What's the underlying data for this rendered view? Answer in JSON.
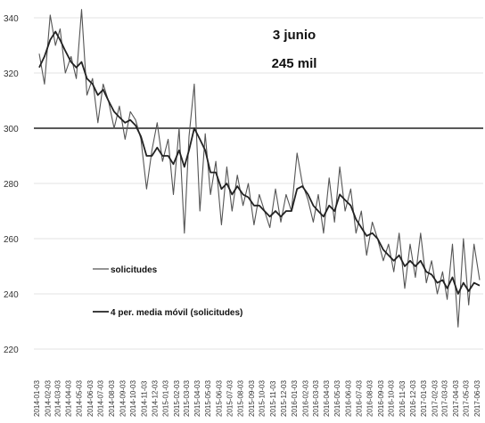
{
  "chart_data": {
    "type": "line",
    "title": "",
    "xlabel": "",
    "ylabel": "",
    "ylim": [
      220,
      345
    ],
    "y_ticks": [
      220,
      240,
      260,
      280,
      300,
      320,
      340
    ],
    "grid": "horizontal",
    "legend_placement": "left-lower inside plot",
    "annotation": {
      "line1": "3 junio",
      "line2": "245 mil"
    },
    "reference_line": {
      "y": 300,
      "color": "#222222"
    },
    "x_labels": [
      "2014-01-03",
      "2014-02-03",
      "2014-03-03",
      "2014-04-03",
      "2014-05-03",
      "2014-06-03",
      "2014-07-03",
      "2014-08-03",
      "2014-09-03",
      "2014-10-03",
      "2014-11-03",
      "2014-12-03",
      "2015-01-03",
      "2015-02-03",
      "2015-03-03",
      "2015-04-03",
      "2015-05-03",
      "2015-06-03",
      "2015-07-03",
      "2015-08-03",
      "2015-09-03",
      "2015-10-03",
      "2015-11-03",
      "2015-12-03",
      "2016-01-03",
      "2016-02-03",
      "2016-03-03",
      "2016-04-03",
      "2016-05-03",
      "2016-06-03",
      "2016-07-03",
      "2016-08-03",
      "2016-09-03",
      "2016-10-03",
      "2016-11-03",
      "2016-12-03",
      "2017-01-03",
      "2017-02-03",
      "2017-03-03",
      "2017-04-03",
      "2017-05-03",
      "2017-06-03"
    ],
    "x": [
      "2014-01-03",
      "2014-01-18",
      "2014-02-03",
      "2014-02-18",
      "2014-03-03",
      "2014-03-18",
      "2014-04-03",
      "2014-04-18",
      "2014-05-03",
      "2014-05-18",
      "2014-06-03",
      "2014-06-18",
      "2014-07-03",
      "2014-07-18",
      "2014-08-03",
      "2014-08-18",
      "2014-09-03",
      "2014-09-18",
      "2014-10-03",
      "2014-10-18",
      "2014-11-03",
      "2014-11-18",
      "2014-12-03",
      "2014-12-18",
      "2015-01-03",
      "2015-01-18",
      "2015-02-03",
      "2015-02-18",
      "2015-03-03",
      "2015-03-18",
      "2015-04-03",
      "2015-04-18",
      "2015-05-03",
      "2015-05-18",
      "2015-06-03",
      "2015-06-18",
      "2015-07-03",
      "2015-07-18",
      "2015-08-03",
      "2015-08-18",
      "2015-09-03",
      "2015-09-18",
      "2015-10-03",
      "2015-10-18",
      "2015-11-03",
      "2015-11-18",
      "2015-12-03",
      "2015-12-18",
      "2016-01-03",
      "2016-01-18",
      "2016-02-03",
      "2016-02-18",
      "2016-03-03",
      "2016-03-18",
      "2016-04-03",
      "2016-04-18",
      "2016-05-03",
      "2016-05-18",
      "2016-06-03",
      "2016-06-18",
      "2016-07-03",
      "2016-07-18",
      "2016-08-03",
      "2016-08-18",
      "2016-09-03",
      "2016-09-18",
      "2016-10-03",
      "2016-10-18",
      "2016-11-03",
      "2016-11-18",
      "2016-12-03",
      "2016-12-18",
      "2017-01-03",
      "2017-01-18",
      "2017-02-03",
      "2017-02-18",
      "2017-03-03",
      "2017-03-18",
      "2017-04-03",
      "2017-04-18",
      "2017-05-03",
      "2017-05-18",
      "2017-06-03"
    ],
    "series": [
      {
        "name": "solicitudes",
        "color": "#555555",
        "values": [
          327,
          316,
          341,
          330,
          336,
          320,
          326,
          318,
          343,
          312,
          318,
          302,
          316,
          310,
          300,
          308,
          296,
          306,
          303,
          296,
          278,
          292,
          302,
          288,
          296,
          276,
          300,
          262,
          297,
          316,
          270,
          298,
          276,
          288,
          265,
          286,
          270,
          283,
          272,
          280,
          265,
          276,
          270,
          264,
          278,
          266,
          276,
          270,
          291,
          280,
          274,
          266,
          276,
          262,
          282,
          266,
          286,
          270,
          278,
          262,
          270,
          254,
          266,
          260,
          252,
          258,
          248,
          262,
          242,
          258,
          246,
          262,
          244,
          252,
          240,
          248,
          238,
          258,
          228,
          260,
          236,
          258,
          245
        ]
      },
      {
        "name": "4 per. media móvil (solicitudes)",
        "color": "#222222",
        "values": [
          322,
          326,
          332,
          335,
          332,
          328,
          324,
          322,
          324,
          318,
          316,
          312,
          314,
          310,
          306,
          304,
          302,
          303,
          301,
          297,
          290,
          290,
          293,
          290,
          290,
          287,
          292,
          286,
          292,
          300,
          296,
          292,
          284,
          284,
          278,
          280,
          276,
          279,
          276,
          275,
          272,
          272,
          270,
          268,
          270,
          268,
          270,
          270,
          278,
          279,
          276,
          272,
          270,
          268,
          272,
          270,
          276,
          274,
          272,
          267,
          264,
          261,
          262,
          260,
          256,
          254,
          252,
          254,
          250,
          252,
          250,
          252,
          248,
          247,
          244,
          245,
          242,
          246,
          240,
          244,
          241,
          244,
          243
        ]
      }
    ]
  }
}
